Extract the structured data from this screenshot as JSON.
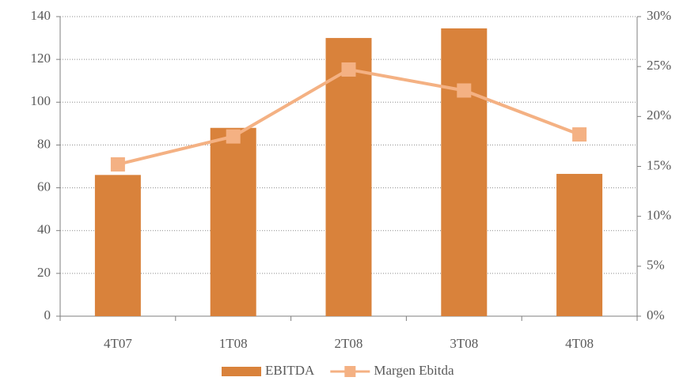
{
  "chart_data": {
    "type": "bar-line",
    "categories": [
      "4T07",
      "1T08",
      "2T08",
      "3T08",
      "4T08"
    ],
    "series": [
      {
        "name": "EBITDA",
        "color": "#d9823b",
        "type": "bar",
        "values": [
          66,
          88,
          130,
          134.5,
          66.5
        ]
      },
      {
        "name": "Margen Ebitda",
        "color": "#f4b183",
        "type": "line",
        "axis": "y2",
        "values": [
          15.2,
          18.0,
          24.7,
          22.6,
          18.2
        ]
      }
    ],
    "ylim": [
      0,
      140
    ],
    "yticks": [
      0,
      20,
      40,
      60,
      80,
      100,
      120,
      140
    ],
    "y2lim": [
      0,
      30
    ],
    "y2ticks": [
      {
        "value": 0,
        "label": "0%"
      },
      {
        "value": 5,
        "label": "5%"
      },
      {
        "value": 10,
        "label": "10%"
      },
      {
        "value": 15,
        "label": "15%"
      },
      {
        "value": 20,
        "label": "20%"
      },
      {
        "value": 25,
        "label": "25%"
      },
      {
        "value": 30,
        "label": "30%"
      }
    ],
    "grid": true,
    "legend": "bottom"
  }
}
